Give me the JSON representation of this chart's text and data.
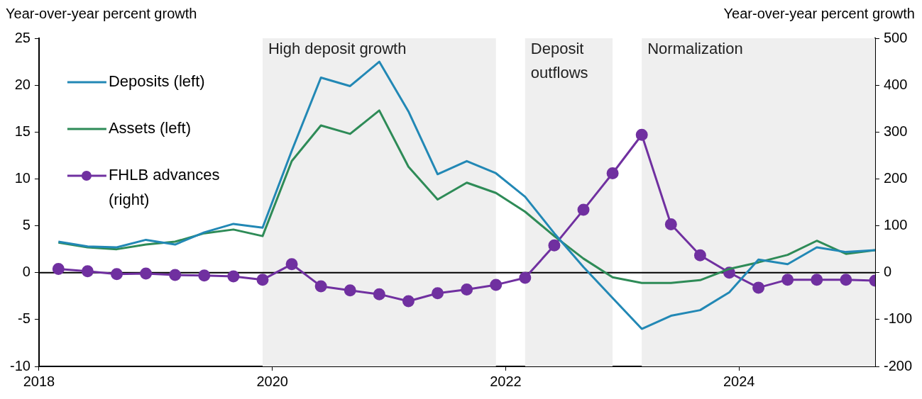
{
  "chart_data": {
    "type": "line",
    "ylabel": "Year-over-year percent growth",
    "y2label": "Year-over-year percent growth",
    "x": [
      "2018-03",
      "2018-06",
      "2018-09",
      "2018-12",
      "2019-03",
      "2019-06",
      "2019-09",
      "2019-12",
      "2020-03",
      "2020-06",
      "2020-09",
      "2020-12",
      "2021-03",
      "2021-06",
      "2021-09",
      "2021-12",
      "2022-03",
      "2022-06",
      "2022-09",
      "2022-12",
      "2023-03",
      "2023-06",
      "2023-09",
      "2023-12",
      "2024-03",
      "2024-06",
      "2024-09",
      "2024-12",
      "2025-03"
    ],
    "series": [
      {
        "name": "Deposits (left)",
        "color": "#2288b5",
        "marker": "none",
        "values": [
          3.3,
          2.8,
          2.7,
          3.5,
          3.0,
          4.3,
          5.2,
          4.8,
          13,
          20.8,
          19.9,
          22.5,
          17.2,
          10.5,
          11.9,
          10.6,
          8.1,
          4.2,
          0.6,
          -2.7,
          -6.0,
          -4.6,
          -4.0,
          -2.1,
          1.4,
          0.9,
          2.7,
          2.2,
          2.4
        ]
      },
      {
        "name": "Assets (left)",
        "color": "#2e8b57",
        "marker": "none",
        "values": [
          3.2,
          2.7,
          2.5,
          3.0,
          3.3,
          4.2,
          4.6,
          3.9,
          11.9,
          15.7,
          14.8,
          17.3,
          11.3,
          7.8,
          9.6,
          8.5,
          6.5,
          3.9,
          1.5,
          -0.5,
          -1.1,
          -1.1,
          -0.8,
          0.4,
          1.1,
          1.9,
          3.4,
          2.0,
          2.4
        ]
      },
      {
        "name": "FHLB advances (right)",
        "color": "#7030a0",
        "marker": "circle",
        "axis": "y2",
        "values": [
          8,
          3,
          -3,
          -2,
          -5,
          -6,
          -8,
          -15,
          18,
          -29,
          -38,
          -46,
          -61,
          -44,
          -36,
          -26,
          -11,
          58,
          134,
          212,
          294,
          103,
          37,
          0,
          -32,
          -15,
          -15,
          -15,
          -17
        ]
      }
    ],
    "xlim": [
      "2018",
      "2025-03"
    ],
    "xticks": [
      "2018",
      "2020",
      "2022",
      "2024"
    ],
    "ylim": [
      -10,
      25
    ],
    "yticks": [
      -10,
      -5,
      0,
      5,
      10,
      15,
      20,
      25
    ],
    "y2lim": [
      -200,
      500
    ],
    "y2ticks": [
      -200,
      -100,
      0,
      100,
      200,
      300,
      400,
      500
    ],
    "bands": [
      {
        "axis": "x",
        "from": "2019-12",
        "to": "2021-12",
        "label": "High deposit growth",
        "color": "#efefef"
      },
      {
        "axis": "x",
        "from": "2022-03",
        "to": "2022-12",
        "label": "Deposit outflows",
        "color": "#efefef"
      },
      {
        "axis": "x",
        "from": "2023-03",
        "to": "2025-03",
        "label": "Normalization",
        "color": "#efefef"
      }
    ],
    "ref_lines": [
      {
        "axis": "y",
        "value": 0,
        "color": "#000000"
      }
    ],
    "grid": false,
    "legend": "top left",
    "line_style": "solid"
  }
}
